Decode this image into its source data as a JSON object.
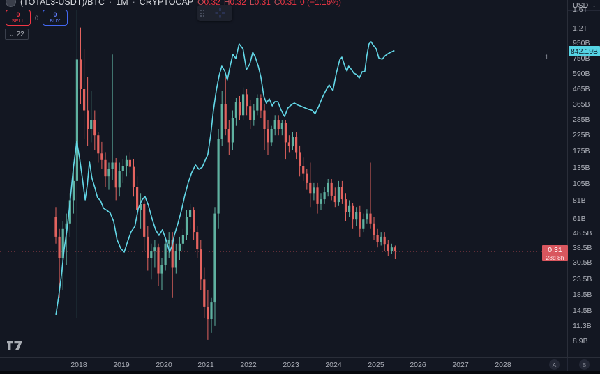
{
  "header": {
    "symbol": "(TOTAL3-USDT)/BTC",
    "sep1": "·",
    "interval": "1M",
    "sep2": "·",
    "exchange": "CRYPTOCAP",
    "ohlc": {
      "o_label": "O",
      "o": "0.32",
      "h_label": "H",
      "h": "0.32",
      "l_label": "L",
      "l": "0.31",
      "c_label": "C",
      "c": "0.31",
      "change": "0 (−1.16%)"
    }
  },
  "trade_panel": {
    "sell_qty": "0",
    "sell_label": "SELL",
    "center_qty": "0",
    "buy_qty": "0",
    "buy_label": "BUY"
  },
  "legend_collapse": {
    "chevron": "⌄",
    "count": "22"
  },
  "price_scale": {
    "currency": "USD",
    "chevron": "⌄",
    "series_marker": "1",
    "line_value_label": "842.19B",
    "ticks": [
      {
        "label": "1.6T",
        "value": 1600
      },
      {
        "label": "1.2T",
        "value": 1200
      },
      {
        "label": "950B",
        "value": 950
      },
      {
        "label": "750B",
        "value": 750
      },
      {
        "label": "590B",
        "value": 590
      },
      {
        "label": "465B",
        "value": 465
      },
      {
        "label": "365B",
        "value": 365
      },
      {
        "label": "285B",
        "value": 285
      },
      {
        "label": "225B",
        "value": 225
      },
      {
        "label": "175B",
        "value": 175
      },
      {
        "label": "135B",
        "value": 135
      },
      {
        "label": "105B",
        "value": 105
      },
      {
        "label": "81B",
        "value": 81
      },
      {
        "label": "61B",
        "value": 61
      },
      {
        "label": "48.5B",
        "value": 48.5
      },
      {
        "label": "38.5B",
        "value": 38.5
      },
      {
        "label": "30.5B",
        "value": 30.5
      },
      {
        "label": "23.5B",
        "value": 23.5
      },
      {
        "label": "18.5B",
        "value": 18.5
      },
      {
        "label": "14.5B",
        "value": 14.5
      },
      {
        "label": "11.3B",
        "value": 11.3
      },
      {
        "label": "8.9B",
        "value": 8.9
      }
    ]
  },
  "price_flag": {
    "price": "0.31",
    "countdown": "28d 8h"
  },
  "time_scale": {
    "years": [
      "2018",
      "2019",
      "2020",
      "2021",
      "2022",
      "2023",
      "2024",
      "2025",
      "2026",
      "2027",
      "2028"
    ]
  },
  "corner_buttons": {
    "a": "A",
    "b": "B"
  },
  "colors": {
    "background": "#131722",
    "candle_up": "#5fb1a0",
    "candle_down": "#e3635f",
    "compare_line": "#63d8e8",
    "price_line_dotted": "#e4555f",
    "down_flag_bg": "#d9565e",
    "line_flag_bg": "#56d5e5",
    "axis_text": "#aeb1ba"
  },
  "chart_data": {
    "type": "candlestick+line",
    "title": "(TOTAL3-USDT)/BTC monthly candles with TOTAL3 market-cap (USD) compare line",
    "timeframe": "1M",
    "x_range_years": [
      2017.4,
      2028.9
    ],
    "right_axis": "USD market cap, log scale, billions",
    "hidden_axis": "ratio (TOTAL3-USDT)/BTC, log scale",
    "current_price": 0.31,
    "line_last_value_billions": 842.19,
    "candles_start_year": 2017.458,
    "candles_ohlc": [
      [
        0.53,
        0.62,
        0.35,
        0.39
      ],
      [
        0.39,
        0.44,
        0.15,
        0.28
      ],
      [
        0.28,
        0.5,
        0.17,
        0.44
      ],
      [
        0.44,
        0.56,
        0.25,
        0.48
      ],
      [
        0.48,
        0.77,
        0.39,
        0.69
      ],
      [
        0.69,
        1.18,
        0.56,
        0.93
      ],
      [
        0.93,
        13.4,
        0.11,
        6.2
      ],
      [
        6.2,
        10.2,
        3.1,
        3.9
      ],
      [
        3.9,
        7.3,
        1.8,
        2.8
      ],
      [
        2.8,
        4.7,
        1.6,
        2.1
      ],
      [
        2.1,
        3.8,
        1.7,
        2.4
      ],
      [
        2.4,
        2.8,
        1.5,
        1.9
      ],
      [
        1.9,
        2.0,
        1.24,
        1.43
      ],
      [
        1.43,
        1.71,
        1.12,
        1.29
      ],
      [
        1.29,
        1.46,
        0.85,
        1.0
      ],
      [
        1.0,
        1.24,
        0.81,
        1.12
      ],
      [
        1.12,
        6.7,
        0.95,
        1.24
      ],
      [
        1.24,
        1.33,
        0.69,
        0.84
      ],
      [
        0.84,
        1.24,
        0.73,
        1.09
      ],
      [
        1.09,
        1.31,
        0.9,
        1.18
      ],
      [
        1.18,
        1.38,
        1.0,
        1.29
      ],
      [
        1.29,
        1.46,
        1.06,
        1.16
      ],
      [
        1.16,
        1.31,
        0.73,
        0.85
      ],
      [
        0.85,
        1.0,
        0.5,
        0.59
      ],
      [
        0.59,
        0.77,
        0.44,
        0.65
      ],
      [
        0.65,
        0.73,
        0.31,
        0.39
      ],
      [
        0.39,
        0.46,
        0.23,
        0.28
      ],
      [
        0.28,
        0.35,
        0.2,
        0.31
      ],
      [
        0.31,
        0.37,
        0.24,
        0.33
      ],
      [
        0.33,
        0.35,
        0.18,
        0.22
      ],
      [
        0.22,
        0.28,
        0.17,
        0.25
      ],
      [
        0.25,
        0.39,
        0.23,
        0.35
      ],
      [
        0.35,
        0.42,
        0.28,
        0.37
      ],
      [
        0.37,
        0.42,
        0.15,
        0.24
      ],
      [
        0.24,
        0.35,
        0.22,
        0.31
      ],
      [
        0.31,
        0.39,
        0.27,
        0.35
      ],
      [
        0.35,
        0.44,
        0.31,
        0.4
      ],
      [
        0.4,
        0.59,
        0.37,
        0.53
      ],
      [
        0.53,
        0.65,
        0.44,
        0.59
      ],
      [
        0.59,
        0.62,
        0.37,
        0.42
      ],
      [
        0.42,
        0.46,
        0.28,
        0.32
      ],
      [
        0.32,
        0.37,
        0.17,
        0.2
      ],
      [
        0.2,
        0.24,
        0.11,
        0.13
      ],
      [
        0.13,
        0.17,
        0.078,
        0.108
      ],
      [
        0.108,
        0.15,
        0.087,
        0.14
      ],
      [
        0.14,
        0.62,
        0.097,
        0.56
      ],
      [
        0.56,
        2.1,
        0.44,
        1.8
      ],
      [
        1.8,
        3.8,
        1.6,
        3.1
      ],
      [
        3.1,
        4.7,
        1.9,
        2.1
      ],
      [
        2.1,
        2.4,
        1.4,
        1.7
      ],
      [
        1.7,
        2.8,
        1.5,
        2.5
      ],
      [
        2.5,
        3.4,
        2.2,
        3.2
      ],
      [
        3.2,
        3.5,
        2.4,
        2.6
      ],
      [
        2.6,
        4.0,
        2.4,
        3.6
      ],
      [
        3.6,
        3.9,
        2.6,
        3.0
      ],
      [
        3.0,
        3.3,
        2.1,
        2.4
      ],
      [
        2.4,
        3.1,
        2.2,
        2.8
      ],
      [
        2.8,
        3.6,
        2.6,
        3.4
      ],
      [
        3.4,
        3.6,
        2.5,
        2.8
      ],
      [
        2.8,
        3.1,
        1.5,
        2.1
      ],
      [
        2.1,
        2.4,
        1.4,
        1.7
      ],
      [
        1.7,
        2.2,
        1.6,
        2.1
      ],
      [
        2.1,
        2.6,
        1.9,
        2.4
      ],
      [
        2.4,
        2.6,
        1.9,
        2.1
      ],
      [
        2.1,
        2.4,
        1.9,
        2.3
      ],
      [
        2.3,
        2.4,
        1.3,
        1.7
      ],
      [
        1.7,
        1.9,
        1.46,
        1.6
      ],
      [
        1.6,
        2.0,
        1.5,
        1.85
      ],
      [
        1.85,
        2.0,
        1.3,
        1.46
      ],
      [
        1.46,
        1.62,
        1.0,
        1.18
      ],
      [
        1.18,
        1.34,
        0.93,
        1.04
      ],
      [
        1.04,
        1.12,
        0.81,
        0.9
      ],
      [
        0.9,
        1.24,
        0.62,
        0.77
      ],
      [
        0.77,
        0.9,
        0.69,
        0.84
      ],
      [
        0.84,
        0.9,
        0.56,
        0.65
      ],
      [
        0.65,
        0.77,
        0.59,
        0.7
      ],
      [
        0.7,
        0.85,
        0.65,
        0.78
      ],
      [
        0.78,
        0.96,
        0.73,
        0.9
      ],
      [
        0.9,
        0.96,
        0.69,
        0.74
      ],
      [
        0.74,
        0.84,
        0.62,
        0.67
      ],
      [
        0.67,
        0.93,
        0.63,
        0.85
      ],
      [
        0.85,
        0.93,
        0.65,
        0.7
      ],
      [
        0.7,
        0.77,
        0.5,
        0.57
      ],
      [
        0.57,
        0.69,
        0.53,
        0.63
      ],
      [
        0.63,
        0.66,
        0.44,
        0.51
      ],
      [
        0.51,
        0.62,
        0.46,
        0.57
      ],
      [
        0.57,
        0.63,
        0.39,
        0.44
      ],
      [
        0.44,
        0.56,
        0.42,
        0.51
      ],
      [
        0.51,
        0.6,
        0.48,
        0.56
      ],
      [
        0.56,
        1.24,
        0.44,
        0.48
      ],
      [
        0.48,
        0.53,
        0.37,
        0.4
      ],
      [
        0.4,
        0.44,
        0.33,
        0.36
      ],
      [
        0.36,
        0.42,
        0.34,
        0.39
      ],
      [
        0.39,
        0.42,
        0.31,
        0.345
      ],
      [
        0.345,
        0.37,
        0.29,
        0.31
      ],
      [
        0.31,
        0.35,
        0.3,
        0.33
      ],
      [
        0.33,
        0.34,
        0.275,
        0.31
      ]
    ],
    "line_year_billions": [
      [
        2017.46,
        13.6
      ],
      [
        2017.52,
        17.6
      ],
      [
        2017.59,
        25.2
      ],
      [
        2017.65,
        36.9
      ],
      [
        2017.72,
        51.2
      ],
      [
        2017.79,
        77.4
      ],
      [
        2017.87,
        133.6
      ],
      [
        2017.95,
        204
      ],
      [
        2018.02,
        155.6
      ],
      [
        2018.08,
        115.9
      ],
      [
        2018.15,
        81.8
      ],
      [
        2018.2,
        103.9
      ],
      [
        2018.25,
        148.9
      ],
      [
        2018.31,
        114.6
      ],
      [
        2018.38,
        98.4
      ],
      [
        2018.44,
        84.5
      ],
      [
        2018.51,
        80.9
      ],
      [
        2018.58,
        71.7
      ],
      [
        2018.66,
        69.4
      ],
      [
        2018.74,
        66.5
      ],
      [
        2018.82,
        58.3
      ],
      [
        2018.9,
        43.9
      ],
      [
        2018.99,
        38.1
      ],
      [
        2019.07,
        36.1
      ],
      [
        2019.15,
        42.5
      ],
      [
        2019.23,
        49.5
      ],
      [
        2019.32,
        54
      ],
      [
        2019.4,
        71
      ],
      [
        2019.48,
        80.9
      ],
      [
        2019.56,
        86.3
      ],
      [
        2019.64,
        74.9
      ],
      [
        2019.73,
        60.2
      ],
      [
        2019.81,
        51.2
      ],
      [
        2019.89,
        46.9
      ],
      [
        2019.97,
        51.2
      ],
      [
        2020.06,
        43.4
      ],
      [
        2020.14,
        36.1
      ],
      [
        2020.2,
        40.2
      ],
      [
        2020.25,
        46.9
      ],
      [
        2020.34,
        57.1
      ],
      [
        2020.42,
        69.4
      ],
      [
        2020.5,
        88.2
      ],
      [
        2020.58,
        107.4
      ],
      [
        2020.66,
        125
      ],
      [
        2020.75,
        141
      ],
      [
        2020.83,
        132
      ],
      [
        2020.91,
        136.4
      ],
      [
        2020.98,
        152.2
      ],
      [
        2021.04,
        166
      ],
      [
        2021.11,
        227.8
      ],
      [
        2021.17,
        326.5
      ],
      [
        2021.24,
        452.8
      ],
      [
        2021.31,
        575.5
      ],
      [
        2021.37,
        663
      ],
      [
        2021.44,
        614
      ],
      [
        2021.5,
        533
      ],
      [
        2021.57,
        670
      ],
      [
        2021.63,
        798
      ],
      [
        2021.7,
        748
      ],
      [
        2021.78,
        940
      ],
      [
        2021.87,
        870
      ],
      [
        2021.95,
        628
      ],
      [
        2022.03,
        685
      ],
      [
        2022.1,
        824
      ],
      [
        2022.16,
        764
      ],
      [
        2022.23,
        663
      ],
      [
        2022.29,
        563
      ],
      [
        2022.36,
        415
      ],
      [
        2022.42,
        372
      ],
      [
        2022.49,
        397
      ],
      [
        2022.56,
        356
      ],
      [
        2022.62,
        380
      ],
      [
        2022.69,
        380
      ],
      [
        2022.77,
        333
      ],
      [
        2022.85,
        302
      ],
      [
        2022.93,
        345
      ],
      [
        2023.02,
        364
      ],
      [
        2023.08,
        372
      ],
      [
        2023.16,
        361
      ],
      [
        2023.25,
        353
      ],
      [
        2023.33,
        345
      ],
      [
        2023.41,
        338
      ],
      [
        2023.49,
        333
      ],
      [
        2023.57,
        315
      ],
      [
        2023.66,
        356
      ],
      [
        2023.74,
        406
      ],
      [
        2023.82,
        452
      ],
      [
        2023.9,
        494
      ],
      [
        2023.99,
        452
      ],
      [
        2024.07,
        595
      ],
      [
        2024.15,
        731
      ],
      [
        2024.2,
        764
      ],
      [
        2024.27,
        663
      ],
      [
        2024.32,
        614
      ],
      [
        2024.36,
        663
      ],
      [
        2024.43,
        628
      ],
      [
        2024.48,
        595
      ],
      [
        2024.55,
        581
      ],
      [
        2024.61,
        551
      ],
      [
        2024.68,
        608
      ],
      [
        2024.74,
        608
      ],
      [
        2024.79,
        781
      ],
      [
        2024.84,
        940
      ],
      [
        2024.89,
        971
      ],
      [
        2024.94,
        919
      ],
      [
        2025.01,
        870
      ],
      [
        2025.07,
        755
      ],
      [
        2025.15,
        739
      ],
      [
        2025.22,
        781
      ],
      [
        2025.29,
        807
      ],
      [
        2025.35,
        824
      ],
      [
        2025.43,
        842.19
      ]
    ]
  }
}
